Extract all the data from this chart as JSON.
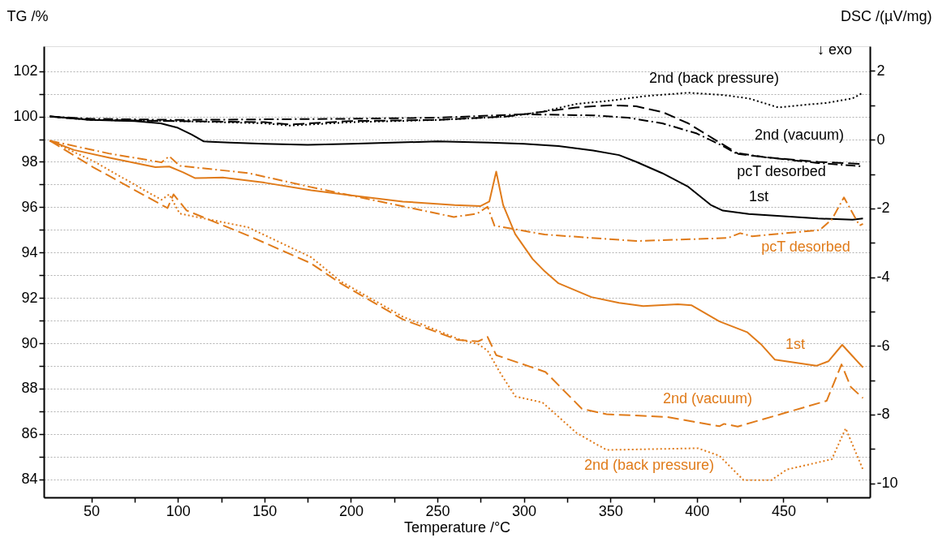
{
  "chart_data": {
    "type": "line",
    "xlabel": "Temperature /°C",
    "ylabel": "TG /%",
    "y2label": "DSC /(µV/mg)",
    "xlim": [
      22.5,
      500
    ],
    "xticks": [
      50,
      {
        "value": 75,
        "label": null
      },
      100,
      {
        "value": 125,
        "label": null
      },
      150,
      {
        "value": 175,
        "label": null
      },
      200,
      {
        "value": 225,
        "label": null
      },
      250,
      {
        "value": 275,
        "label": null
      },
      300,
      {
        "value": 325,
        "label": null
      },
      350,
      {
        "value": 375,
        "label": null
      },
      400,
      {
        "value": 425,
        "label": null
      },
      450,
      {
        "value": 475,
        "label": null
      }
    ],
    "ylim": [
      83.2,
      103.1
    ],
    "yticks": [
      84,
      {
        "value": 85,
        "label": null
      },
      86,
      {
        "value": 87,
        "label": null
      },
      88,
      {
        "value": 89,
        "label": null
      },
      90,
      {
        "value": 91,
        "label": null
      },
      92,
      {
        "value": 93,
        "label": null
      },
      94,
      {
        "value": 95,
        "label": null
      },
      96,
      {
        "value": 97,
        "label": null
      },
      98,
      {
        "value": 99,
        "label": null
      },
      100,
      {
        "value": 101,
        "label": null
      },
      102
    ],
    "y2lim": [
      -10.41,
      2.72
    ],
    "y2ticks": [
      -10,
      {
        "value": -9,
        "label": null
      },
      -8,
      {
        "value": -7,
        "label": null
      },
      -6,
      {
        "value": -5,
        "label": null
      },
      -4,
      {
        "value": -3,
        "label": null
      },
      -2,
      {
        "value": -1,
        "label": null
      },
      0,
      {
        "value": 1,
        "label": null
      },
      2
    ],
    "grid": "y",
    "legend": false,
    "series": [
      {
        "name": "1st",
        "color": "#000000",
        "line_style": "solid",
        "x": [
          26,
          50,
          75,
          90,
          100,
          108,
          115,
          130,
          150,
          175,
          200,
          250,
          280,
          300,
          320,
          340,
          355,
          365,
          380,
          395,
          408,
          415,
          430,
          450,
          470,
          490,
          496
        ],
        "values": [
          100.0,
          99.85,
          99.8,
          99.7,
          99.5,
          99.2,
          98.9,
          98.85,
          98.8,
          98.75,
          98.8,
          98.9,
          98.85,
          98.8,
          98.7,
          98.5,
          98.3,
          98.0,
          97.5,
          96.9,
          96.1,
          95.85,
          95.7,
          95.6,
          95.5,
          95.45,
          95.5
        ]
      },
      {
        "name": "2nd (vacuum)",
        "color": "#000000",
        "line_style": "dashed",
        "x": [
          26,
          50,
          100,
          150,
          165,
          200,
          250,
          290,
          310,
          330,
          350,
          365,
          380,
          395,
          410,
          424,
          440,
          470,
          496
        ],
        "values": [
          100.0,
          99.85,
          99.8,
          99.75,
          99.65,
          99.8,
          99.85,
          100.0,
          100.2,
          100.4,
          100.5,
          100.45,
          100.2,
          99.7,
          99.0,
          98.35,
          98.2,
          98.0,
          97.9
        ]
      },
      {
        "name": "2nd (back pressure)",
        "color": "#000000",
        "line_style": "dotted",
        "x": [
          26,
          50,
          100,
          150,
          165,
          200,
          250,
          290,
          310,
          330,
          350,
          370,
          395,
          415,
          430,
          447,
          460,
          475,
          490,
          496
        ],
        "values": [
          100.0,
          99.85,
          99.8,
          99.7,
          99.6,
          99.75,
          99.85,
          100.0,
          100.2,
          100.55,
          100.7,
          100.9,
          101.05,
          100.95,
          100.8,
          100.4,
          100.5,
          100.6,
          100.8,
          101.05
        ]
      },
      {
        "name": "pcT desorbed",
        "color": "#000000",
        "line_style": "dashdot",
        "x": [
          26,
          50,
          100,
          200,
          250,
          300,
          340,
          360,
          380,
          400,
          415,
          422,
          440,
          470,
          496
        ],
        "values": [
          100.0,
          99.9,
          99.85,
          99.9,
          99.95,
          100.1,
          100.05,
          99.95,
          99.7,
          99.25,
          98.7,
          98.4,
          98.2,
          97.95,
          97.8
        ]
      },
      {
        "name": "1st",
        "color": "#e07b1a",
        "line_style": "solid",
        "axis": "y2",
        "x": [
          26,
          40,
          60,
          87,
          95,
          103,
          110,
          126,
          150,
          177,
          200,
          230,
          260,
          275,
          280,
          284,
          288,
          295,
          305,
          312,
          320,
          339,
          355,
          369,
          389,
          397,
          413,
          429,
          437,
          445,
          469,
          476,
          484,
          490,
          496
        ],
        "values": [
          -0.03,
          -0.3,
          -0.52,
          -0.8,
          -0.78,
          -0.95,
          -1.12,
          -1.1,
          -1.25,
          -1.47,
          -1.62,
          -1.8,
          -1.9,
          -1.93,
          -1.8,
          -0.93,
          -1.9,
          -2.75,
          -3.47,
          -3.83,
          -4.18,
          -4.58,
          -4.75,
          -4.84,
          -4.79,
          -4.82,
          -5.29,
          -5.6,
          -5.95,
          -6.4,
          -6.58,
          -6.45,
          -5.97,
          -6.3,
          -6.63
        ]
      },
      {
        "name": "2nd (vacuum)",
        "color": "#e07b1a",
        "line_style": "dashed",
        "axis": "y2",
        "x": [
          26,
          51,
          94,
          97.5,
          105,
          140.6,
          176.6,
          194.4,
          230,
          262,
          273.6,
          279,
          284,
          312.5,
          333.5,
          347.8,
          383,
          413,
          415.7,
          423.6,
          475,
          483.6,
          489,
          496
        ],
        "values": [
          -0.03,
          -0.8,
          -1.99,
          -1.59,
          -2.06,
          -2.79,
          -3.59,
          -4.19,
          -5.23,
          -5.83,
          -5.87,
          -5.74,
          -6.27,
          -6.76,
          -7.83,
          -7.99,
          -8.07,
          -8.34,
          -8.27,
          -8.35,
          -7.6,
          -6.54,
          -7.2,
          -7.52
        ]
      },
      {
        "name": "2nd (back pressure)",
        "color": "#e07b1a",
        "line_style": "dotted",
        "axis": "y2",
        "x": [
          26,
          51,
          90.5,
          95,
          101,
          140.6,
          177,
          194,
          230,
          262,
          273.6,
          279,
          286,
          295,
          310.8,
          330.6,
          347.8,
          400.6,
          413,
          427,
          443,
          452,
          478,
          486,
          496
        ],
        "values": [
          -0.03,
          -0.62,
          -1.75,
          -1.59,
          -2.15,
          -2.55,
          -3.42,
          -4.12,
          -5.15,
          -5.8,
          -5.95,
          -6.14,
          -6.76,
          -7.47,
          -7.65,
          -8.54,
          -9.03,
          -8.98,
          -9.2,
          -9.91,
          -9.91,
          -9.6,
          -9.3,
          -8.4,
          -9.6
        ]
      },
      {
        "name": "pcT desorbed",
        "color": "#e07b1a",
        "line_style": "dashdot",
        "axis": "y2",
        "x": [
          26,
          60,
          90.5,
          95,
          101,
          140.6,
          177,
          212,
          259.5,
          273,
          279,
          283,
          312,
          365,
          418,
          425,
          432,
          471,
          478,
          485,
          494,
          496
        ],
        "values": [
          -0.03,
          -0.4,
          -0.66,
          -0.48,
          -0.76,
          -0.97,
          -1.38,
          -1.75,
          -2.25,
          -2.15,
          -1.95,
          -2.5,
          -2.76,
          -2.95,
          -2.86,
          -2.72,
          -2.81,
          -2.63,
          -2.32,
          -1.68,
          -2.5,
          -2.45
        ]
      }
    ],
    "annotations": [
      "↓ exo"
    ]
  }
}
